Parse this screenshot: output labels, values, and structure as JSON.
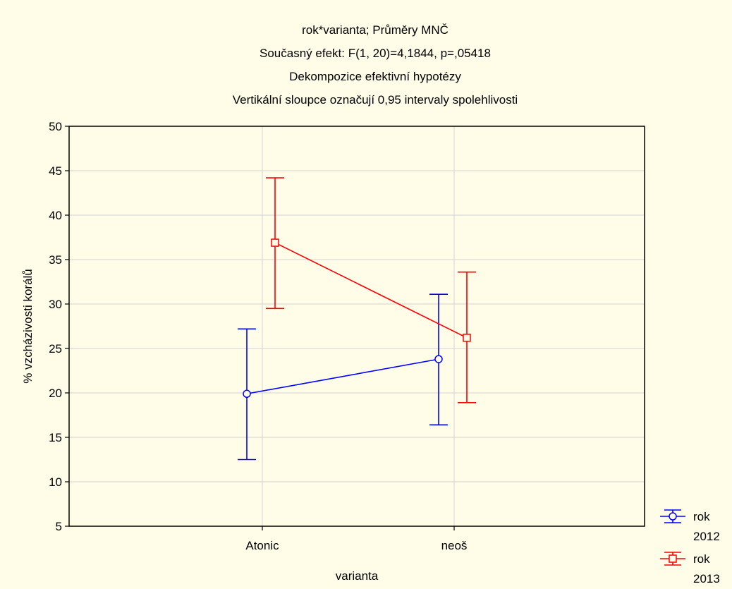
{
  "chart_data": {
    "type": "line",
    "title_lines": [
      "rok*varianta; Průměry MNČ",
      "Současný efekt: F(1, 20)=4,1844, p=,05418",
      "Dekompozice efektivní hypotézy",
      "Vertikální sloupce označují 0,95 intervaly spolehlivosti"
    ],
    "xlabel": "varianta",
    "ylabel": "% vzcházivosti korálů",
    "categories": [
      "Atonic",
      "neoš"
    ],
    "ylim": [
      5,
      50
    ],
    "yticks": [
      5,
      10,
      15,
      20,
      25,
      30,
      35,
      40,
      45,
      50
    ],
    "grid": true,
    "legend_position": "bottom-right outside",
    "series": [
      {
        "name": "rok 2012",
        "legend_lines": [
          "rok",
          "2012"
        ],
        "color": "#0000ff",
        "marker": "circle",
        "values": [
          19.9,
          23.8
        ],
        "ci_low": [
          12.5,
          16.4
        ],
        "ci_high": [
          27.2,
          31.1
        ]
      },
      {
        "name": "rok 2013",
        "legend_lines": [
          "rok",
          "2013"
        ],
        "color": "#ff0000",
        "marker": "square",
        "values": [
          36.9,
          26.2
        ],
        "ci_low": [
          29.5,
          18.9
        ],
        "ci_high": [
          44.2,
          33.6
        ]
      }
    ]
  }
}
